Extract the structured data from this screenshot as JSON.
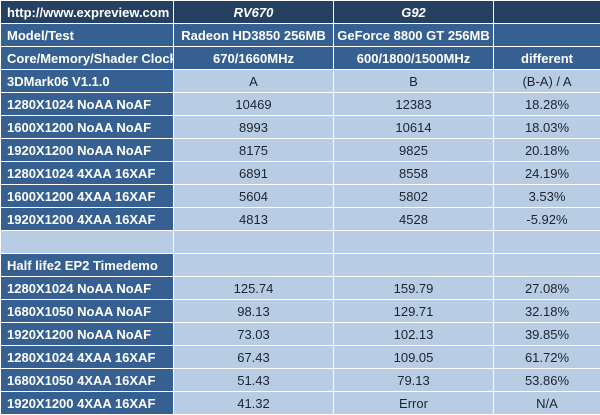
{
  "chart_data": {
    "type": "table",
    "source_label": "http://www.expreview.com",
    "gpu_a": {
      "codename": "RV670",
      "model": "Radeon HD3850 256MB",
      "clocks": "670/1660MHz",
      "column_key": "A"
    },
    "gpu_b": {
      "codename": "G92",
      "model": "GeForce 8800 GT 256MB",
      "clocks": "600/1800/1500MHz",
      "column_key": "B"
    },
    "diff_header": "different",
    "diff_formula": "(B-A) / A",
    "sections": [
      "3DMark06 V1.1.0",
      "Half life2 EP2 Timedemo"
    ],
    "colors": {
      "header_dark_bg": "#254061",
      "label_bg": "#376092",
      "data_bg": "#b8cce4",
      "grid": "#ffffff",
      "header_text": "#ffffff",
      "data_text": "#1c2430"
    },
    "rows": [
      {
        "kind": "header",
        "cells": [
          "http://www.expreview.com",
          "RV670",
          "G92",
          ""
        ]
      },
      {
        "kind": "header2",
        "cells": [
          "Model/Test",
          "Radeon HD3850 256MB",
          "GeForce 8800 GT 256MB",
          ""
        ]
      },
      {
        "kind": "header3",
        "cells": [
          "Core/Memory/Shader Clock",
          "670/1660MHz",
          "600/1800/1500MHz",
          "different"
        ]
      },
      {
        "kind": "subheader",
        "cells": [
          "3DMark06 V1.1.0",
          "A",
          "B",
          "(B-A) / A"
        ]
      },
      {
        "kind": "data",
        "cells": [
          "1280X1024 NoAA NoAF",
          "10469",
          "12383",
          "18.28%"
        ]
      },
      {
        "kind": "data",
        "cells": [
          "1600X1200 NoAA NoAF",
          "8993",
          "10614",
          "18.03%"
        ]
      },
      {
        "kind": "data",
        "cells": [
          "1920X1200 NoAA NoAF",
          "8175",
          "9825",
          "20.18%"
        ]
      },
      {
        "kind": "data",
        "cells": [
          "1280X1024 4XAA 16XAF",
          "6891",
          "8558",
          "24.19%"
        ]
      },
      {
        "kind": "data",
        "cells": [
          "1600X1200 4XAA 16XAF",
          "5604",
          "5802",
          "3.53%"
        ]
      },
      {
        "kind": "data",
        "cells": [
          "1920X1200 4XAA 16XAF",
          "4813",
          "4528",
          "-5.92%"
        ]
      },
      {
        "kind": "empty",
        "cells": [
          "",
          "",
          "",
          ""
        ]
      },
      {
        "kind": "section",
        "cells": [
          "Half life2 EP2 Timedemo",
          "",
          "",
          ""
        ]
      },
      {
        "kind": "data",
        "cells": [
          "1280X1024 NoAA NoAF",
          "125.74",
          "159.79",
          "27.08%"
        ]
      },
      {
        "kind": "data",
        "cells": [
          "1680X1050 NoAA NoAF",
          "98.13",
          "129.71",
          "32.18%"
        ]
      },
      {
        "kind": "data",
        "cells": [
          "1920X1200 NoAA NoAF",
          "73.03",
          "102.13",
          "39.85%"
        ]
      },
      {
        "kind": "data",
        "cells": [
          "1280X1024 4XAA 16XAF",
          "67.43",
          "109.05",
          "61.72%"
        ]
      },
      {
        "kind": "data",
        "cells": [
          "1680X1050 4XAA 16XAF",
          "51.43",
          "79.13",
          "53.86%"
        ]
      },
      {
        "kind": "data",
        "cells": [
          "1920X1200 4XAA 16XAF",
          "41.32",
          "Error",
          "N/A"
        ]
      }
    ]
  }
}
